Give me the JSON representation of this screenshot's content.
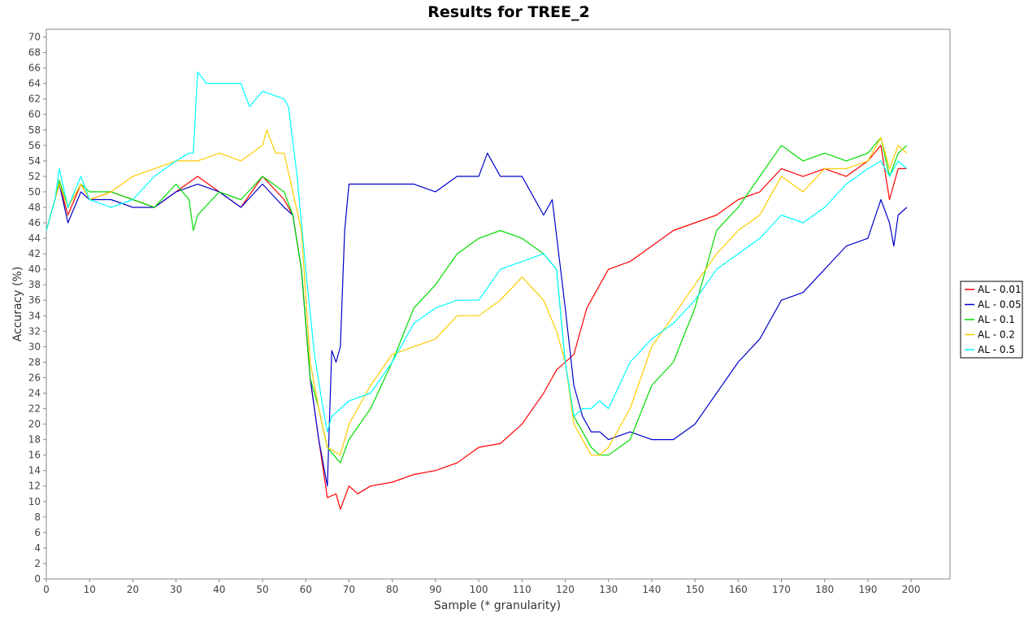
{
  "chart_data": {
    "type": "line",
    "title": "Results for TREE_2",
    "xlabel": "Sample (* granularity)",
    "ylabel": "Accuracy (%)",
    "xlim": [
      0,
      209
    ],
    "ylim": [
      0,
      71
    ],
    "x_ticks": [
      0,
      10,
      20,
      30,
      40,
      50,
      60,
      70,
      80,
      90,
      100,
      110,
      120,
      130,
      140,
      150,
      160,
      170,
      180,
      190,
      200
    ],
    "y_ticks": [
      0,
      2,
      4,
      6,
      8,
      10,
      12,
      14,
      16,
      18,
      20,
      22,
      24,
      26,
      28,
      30,
      32,
      34,
      36,
      38,
      40,
      42,
      44,
      46,
      48,
      50,
      52,
      54,
      56,
      58,
      60,
      62,
      64,
      66,
      68,
      70
    ],
    "grid": false,
    "legend_position": "right",
    "series": [
      {
        "name": "AL - 0.01",
        "color": "#ff0000",
        "points": [
          [
            0,
            45
          ],
          [
            2,
            49
          ],
          [
            3,
            51
          ],
          [
            5,
            47
          ],
          [
            8,
            51
          ],
          [
            10,
            49
          ],
          [
            15,
            50
          ],
          [
            20,
            49
          ],
          [
            25,
            48
          ],
          [
            30,
            50
          ],
          [
            35,
            52
          ],
          [
            40,
            50
          ],
          [
            45,
            48
          ],
          [
            50,
            52
          ],
          [
            55,
            49
          ],
          [
            57,
            47
          ],
          [
            59,
            40
          ],
          [
            61,
            26
          ],
          [
            63,
            18
          ],
          [
            65,
            10.5
          ],
          [
            67,
            11
          ],
          [
            68,
            9
          ],
          [
            70,
            12
          ],
          [
            72,
            11
          ],
          [
            75,
            12
          ],
          [
            80,
            12.5
          ],
          [
            85,
            13.5
          ],
          [
            90,
            14
          ],
          [
            95,
            15
          ],
          [
            100,
            17
          ],
          [
            105,
            17.5
          ],
          [
            110,
            20
          ],
          [
            115,
            24
          ],
          [
            118,
            27
          ],
          [
            120,
            28
          ],
          [
            122,
            29
          ],
          [
            125,
            35
          ],
          [
            128,
            38
          ],
          [
            130,
            40
          ],
          [
            135,
            41
          ],
          [
            140,
            43
          ],
          [
            145,
            45
          ],
          [
            150,
            46
          ],
          [
            155,
            47
          ],
          [
            160,
            49
          ],
          [
            165,
            50
          ],
          [
            170,
            53
          ],
          [
            175,
            52
          ],
          [
            180,
            53
          ],
          [
            185,
            52
          ],
          [
            190,
            54
          ],
          [
            193,
            56
          ],
          [
            195,
            49
          ],
          [
            197,
            53
          ],
          [
            199,
            53
          ]
        ]
      },
      {
        "name": "AL - 0.05",
        "color": "#0000cc",
        "points": [
          [
            0,
            45
          ],
          [
            2,
            49
          ],
          [
            3,
            51
          ],
          [
            5,
            46
          ],
          [
            8,
            50
          ],
          [
            10,
            49
          ],
          [
            15,
            49
          ],
          [
            20,
            48
          ],
          [
            25,
            48
          ],
          [
            30,
            50
          ],
          [
            35,
            51
          ],
          [
            40,
            50
          ],
          [
            45,
            48
          ],
          [
            50,
            51
          ],
          [
            55,
            48
          ],
          [
            57,
            47
          ],
          [
            59,
            40
          ],
          [
            61,
            26
          ],
          [
            63,
            18
          ],
          [
            65,
            12
          ],
          [
            66,
            29.5
          ],
          [
            67,
            28
          ],
          [
            68,
            30
          ],
          [
            69,
            45
          ],
          [
            70,
            51
          ],
          [
            75,
            51
          ],
          [
            80,
            51
          ],
          [
            85,
            51
          ],
          [
            90,
            50
          ],
          [
            95,
            52
          ],
          [
            100,
            52
          ],
          [
            102,
            55
          ],
          [
            105,
            52
          ],
          [
            110,
            52
          ],
          [
            115,
            47
          ],
          [
            117,
            49
          ],
          [
            120,
            35
          ],
          [
            122,
            25
          ],
          [
            124,
            21
          ],
          [
            126,
            19
          ],
          [
            128,
            19
          ],
          [
            130,
            18
          ],
          [
            135,
            19
          ],
          [
            140,
            18
          ],
          [
            145,
            18
          ],
          [
            150,
            20
          ],
          [
            155,
            24
          ],
          [
            160,
            28
          ],
          [
            165,
            31
          ],
          [
            170,
            36
          ],
          [
            175,
            37
          ],
          [
            180,
            40
          ],
          [
            185,
            43
          ],
          [
            190,
            44
          ],
          [
            193,
            49
          ],
          [
            195,
            46
          ],
          [
            196,
            43
          ],
          [
            197,
            47
          ],
          [
            199,
            48
          ]
        ]
      },
      {
        "name": "AL - 0.1",
        "color": "#00dd00",
        "points": [
          [
            0,
            45
          ],
          [
            2,
            49
          ],
          [
            3,
            51.5
          ],
          [
            5,
            48
          ],
          [
            8,
            51
          ],
          [
            10,
            50
          ],
          [
            15,
            50
          ],
          [
            20,
            49
          ],
          [
            25,
            48
          ],
          [
            30,
            51
          ],
          [
            33,
            49
          ],
          [
            34,
            45
          ],
          [
            35,
            47
          ],
          [
            40,
            50
          ],
          [
            45,
            49
          ],
          [
            50,
            52
          ],
          [
            55,
            50
          ],
          [
            57,
            47
          ],
          [
            59,
            40
          ],
          [
            61,
            26
          ],
          [
            63,
            22
          ],
          [
            65,
            17
          ],
          [
            68,
            15
          ],
          [
            70,
            18
          ],
          [
            75,
            22
          ],
          [
            80,
            28
          ],
          [
            85,
            35
          ],
          [
            90,
            38
          ],
          [
            95,
            42
          ],
          [
            100,
            44
          ],
          [
            105,
            45
          ],
          [
            110,
            44
          ],
          [
            115,
            42
          ],
          [
            118,
            40
          ],
          [
            120,
            28
          ],
          [
            122,
            21
          ],
          [
            124,
            19
          ],
          [
            126,
            17
          ],
          [
            128,
            16
          ],
          [
            130,
            16
          ],
          [
            135,
            18
          ],
          [
            140,
            25
          ],
          [
            145,
            28
          ],
          [
            150,
            35
          ],
          [
            155,
            45
          ],
          [
            160,
            48
          ],
          [
            165,
            52
          ],
          [
            170,
            56
          ],
          [
            175,
            54
          ],
          [
            180,
            55
          ],
          [
            185,
            54
          ],
          [
            190,
            55
          ],
          [
            193,
            57
          ],
          [
            195,
            52
          ],
          [
            197,
            55
          ],
          [
            199,
            56
          ]
        ]
      },
      {
        "name": "AL - 0.2",
        "color": "#ffcc00",
        "points": [
          [
            0,
            45
          ],
          [
            2,
            49
          ],
          [
            3,
            51
          ],
          [
            5,
            48
          ],
          [
            8,
            51
          ],
          [
            10,
            49
          ],
          [
            15,
            50
          ],
          [
            20,
            52
          ],
          [
            25,
            53
          ],
          [
            30,
            54
          ],
          [
            35,
            54
          ],
          [
            40,
            55
          ],
          [
            45,
            54
          ],
          [
            50,
            56
          ],
          [
            51,
            58
          ],
          [
            53,
            55
          ],
          [
            55,
            55
          ],
          [
            57,
            50
          ],
          [
            59,
            45
          ],
          [
            61,
            28
          ],
          [
            63,
            22
          ],
          [
            65,
            17
          ],
          [
            68,
            16
          ],
          [
            70,
            20
          ],
          [
            75,
            25
          ],
          [
            80,
            29
          ],
          [
            85,
            30
          ],
          [
            90,
            31
          ],
          [
            95,
            34
          ],
          [
            100,
            34
          ],
          [
            105,
            36
          ],
          [
            110,
            39
          ],
          [
            115,
            36
          ],
          [
            118,
            32
          ],
          [
            120,
            28
          ],
          [
            122,
            20
          ],
          [
            124,
            18
          ],
          [
            126,
            16
          ],
          [
            128,
            16
          ],
          [
            130,
            17
          ],
          [
            135,
            22
          ],
          [
            140,
            30
          ],
          [
            145,
            34
          ],
          [
            150,
            38
          ],
          [
            155,
            42
          ],
          [
            160,
            45
          ],
          [
            165,
            47
          ],
          [
            170,
            52
          ],
          [
            175,
            50
          ],
          [
            180,
            53
          ],
          [
            185,
            53
          ],
          [
            190,
            54
          ],
          [
            193,
            57
          ],
          [
            195,
            53
          ],
          [
            197,
            56
          ],
          [
            199,
            55
          ]
        ]
      },
      {
        "name": "AL - 0.5",
        "color": "#00ffff",
        "points": [
          [
            0,
            45
          ],
          [
            2,
            49
          ],
          [
            3,
            53
          ],
          [
            5,
            48
          ],
          [
            8,
            52
          ],
          [
            10,
            49
          ],
          [
            15,
            48
          ],
          [
            20,
            49
          ],
          [
            25,
            52
          ],
          [
            30,
            54
          ],
          [
            33,
            55
          ],
          [
            34,
            55
          ],
          [
            35,
            65.5
          ],
          [
            37,
            64
          ],
          [
            40,
            64
          ],
          [
            45,
            64
          ],
          [
            47,
            61
          ],
          [
            50,
            63
          ],
          [
            55,
            62
          ],
          [
            56,
            61
          ],
          [
            58,
            52
          ],
          [
            60,
            40
          ],
          [
            62,
            29
          ],
          [
            64,
            22
          ],
          [
            65,
            19
          ],
          [
            66,
            21
          ],
          [
            68,
            22
          ],
          [
            70,
            23
          ],
          [
            75,
            24
          ],
          [
            80,
            28
          ],
          [
            85,
            33
          ],
          [
            90,
            35
          ],
          [
            95,
            36
          ],
          [
            100,
            36
          ],
          [
            105,
            40
          ],
          [
            110,
            41
          ],
          [
            115,
            42
          ],
          [
            118,
            40
          ],
          [
            120,
            28
          ],
          [
            122,
            21
          ],
          [
            124,
            22
          ],
          [
            126,
            22
          ],
          [
            128,
            23
          ],
          [
            130,
            22
          ],
          [
            135,
            28
          ],
          [
            140,
            31
          ],
          [
            145,
            33
          ],
          [
            150,
            36
          ],
          [
            155,
            40
          ],
          [
            160,
            42
          ],
          [
            165,
            44
          ],
          [
            170,
            47
          ],
          [
            175,
            46
          ],
          [
            180,
            48
          ],
          [
            185,
            51
          ],
          [
            190,
            53
          ],
          [
            193,
            54
          ],
          [
            195,
            52
          ],
          [
            197,
            54
          ],
          [
            199,
            53
          ]
        ]
      }
    ]
  }
}
